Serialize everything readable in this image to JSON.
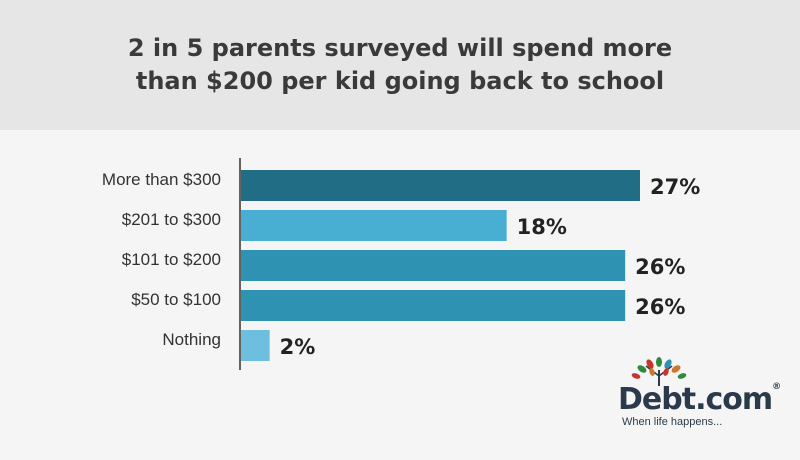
{
  "title": {
    "line1": "2 in 5 parents surveyed will spend more",
    "line2": "than $200 per kid going back to school"
  },
  "chart_data": {
    "type": "bar",
    "orientation": "horizontal",
    "categories": [
      "More than $300",
      "$201 to $300",
      "$101 to $200",
      "$50 to $100",
      "Nothing"
    ],
    "values": [
      27,
      18,
      26,
      26,
      2
    ],
    "value_labels": [
      "27%",
      "18%",
      "26%",
      "26%",
      "2%"
    ],
    "colors": [
      "#226d86",
      "#48afd3",
      "#2e93b3",
      "#2e93b3",
      "#6ebfdf"
    ],
    "xlim": [
      0,
      27
    ],
    "grid": false,
    "legend": "none"
  },
  "logo": {
    "name": "Debt.com",
    "registered": "®",
    "tagline": "When life happens..."
  }
}
